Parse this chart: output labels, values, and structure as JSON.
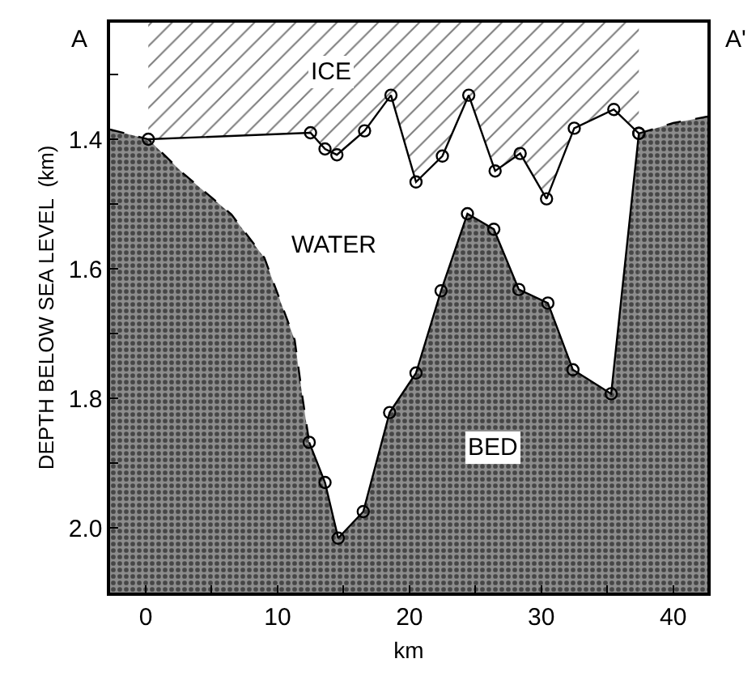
{
  "chart_data": {
    "type": "line",
    "xlabel": "km",
    "ylabel": "DEPTH BELOW SEA LEVEL  (km)",
    "xlim": [
      -2.7,
      42.6
    ],
    "ylim": [
      2.1,
      1.22
    ],
    "xticks": [
      0,
      {
        "value": 5,
        "label": null
      },
      10,
      {
        "value": 15,
        "label": null
      },
      20,
      {
        "value": 25,
        "label": null
      },
      30,
      {
        "value": 35,
        "label": null
      },
      40
    ],
    "yticks": [
      {
        "value": 1.3,
        "label": null
      },
      1.4,
      {
        "value": 1.5,
        "label": null
      },
      1.6,
      {
        "value": 1.7,
        "label": null
      },
      1.8,
      {
        "value": 1.9,
        "label": null
      },
      {
        "value": 2.0,
        "label": "2.0"
      }
    ],
    "series": [
      {
        "color": "#000000",
        "marker": "circle",
        "line_style": "solid",
        "x": [
          0.2,
          12.5,
          13.6,
          14.5,
          16.6,
          18.6,
          20.5,
          22.5,
          24.5,
          26.5,
          28.4,
          30.4,
          32.5,
          35.5,
          37.4
        ],
        "values": [
          1.4,
          1.39,
          1.415,
          1.424,
          1.387,
          1.332,
          1.466,
          1.426,
          1.332,
          1.449,
          1.422,
          1.492,
          1.383,
          1.354,
          1.391
        ],
        "lower": [
          1.22,
          1.22,
          1.22,
          1.22,
          1.22,
          1.22,
          1.22,
          1.22,
          1.22,
          1.22,
          1.22,
          1.22,
          1.22,
          1.22,
          1.22
        ],
        "upper": [
          1.4,
          1.39,
          1.415,
          1.424,
          1.387,
          1.332,
          1.466,
          1.426,
          1.332,
          1.449,
          1.422,
          1.492,
          1.383,
          1.354,
          1.391
        ]
      },
      {
        "color": "#000000",
        "marker": "none",
        "line_style": "dashed",
        "x": [
          -2.7,
          0.2,
          2.8,
          6.5,
          9.0,
          11.3,
          11.9,
          12.4
        ],
        "values": [
          1.385,
          1.4,
          1.452,
          1.516,
          1.583,
          1.71,
          1.8,
          1.868
        ],
        "lower": [
          1.385,
          1.4,
          1.452,
          1.516,
          1.583,
          1.71,
          1.8,
          1.868
        ],
        "upper": [
          2.1,
          2.1,
          2.1,
          2.1,
          2.1,
          2.1,
          2.1,
          2.1
        ]
      },
      {
        "color": "#000000",
        "marker": "circle",
        "line_style": "solid",
        "x": [
          12.4,
          13.6,
          14.6,
          16.5,
          18.5,
          20.5,
          22.4,
          24.4,
          26.4,
          28.3,
          30.5,
          32.4,
          35.3,
          37.4
        ],
        "values": [
          1.868,
          1.93,
          2.016,
          1.975,
          1.822,
          1.761,
          1.634,
          1.515,
          1.539,
          1.632,
          1.653,
          1.756,
          1.793,
          1.391
        ],
        "lower": [
          1.868,
          1.93,
          2.016,
          1.975,
          1.822,
          1.761,
          1.634,
          1.515,
          1.539,
          1.632,
          1.653,
          1.756,
          1.793,
          1.391
        ],
        "upper": [
          2.1,
          2.1,
          2.1,
          2.1,
          2.1,
          2.1,
          2.1,
          2.1,
          2.1,
          2.1,
          2.1,
          2.1,
          2.1,
          2.1
        ]
      },
      {
        "color": "#000000",
        "marker": "none",
        "line_style": "dashed",
        "x": [
          37.4,
          40.0,
          42.6
        ],
        "values": [
          1.391,
          1.375,
          1.365
        ],
        "lower": [
          1.391,
          1.375,
          1.365
        ],
        "upper": [
          2.1,
          2.1,
          2.1
        ]
      }
    ],
    "annotations": [
      "A",
      "A'",
      "ICE",
      "WATER",
      "BED"
    ]
  }
}
